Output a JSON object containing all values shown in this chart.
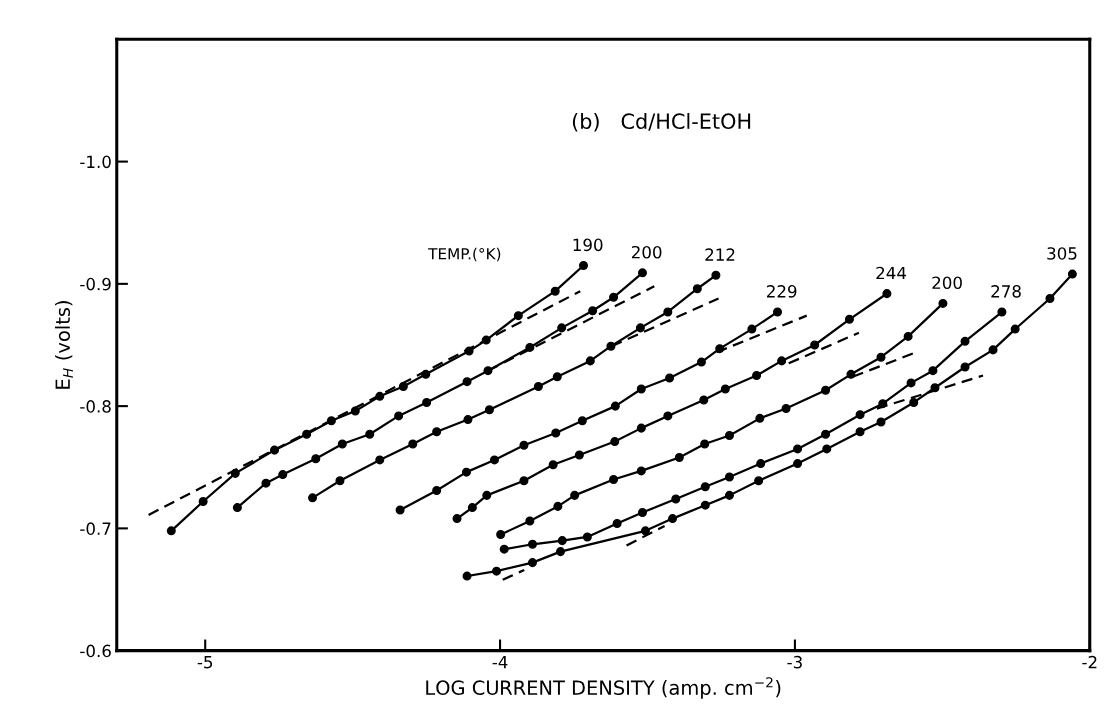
{
  "chart_data": {
    "type": "line",
    "title": "(b)   Cd/HCl-EtOH",
    "xlabel": "LOG CURRENT DENSITY (amp. cm$^{−2}$)",
    "ylabel": "E$_{H}$ (volts)",
    "xlim": [
      -5.3,
      -2
    ],
    "ylim": [
      -0.6,
      -1.1
    ],
    "xticks": [
      -5,
      -4,
      -3,
      -2
    ],
    "yticks": [
      {
        "value": -0.6,
        "label": "-0.6"
      },
      {
        "value": -0.7,
        "label": "-0.7"
      },
      {
        "value": -0.8,
        "label": "-0.8"
      },
      {
        "value": -0.9,
        "label": "-0.9"
      },
      {
        "value": -1.0,
        "label": "-1.0"
      }
    ],
    "grid": false,
    "legend": false,
    "marker": "circle",
    "line_style": "solid",
    "annotations": [
      "TEMP.(°K)"
    ],
    "series": [
      {
        "name": "190",
        "color": "#000000",
        "x": [
          -5.115,
          -5.007,
          -4.898,
          -4.765,
          -4.656,
          -4.572,
          -4.491,
          -4.408,
          -4.328,
          -4.252,
          -4.105,
          -4.047,
          -3.938,
          -3.813,
          -3.717
        ],
        "values": [
          -0.698,
          -0.722,
          -0.745,
          -0.764,
          -0.777,
          -0.788,
          -0.796,
          -0.808,
          -0.816,
          -0.826,
          -0.845,
          -0.854,
          -0.874,
          -0.894,
          -0.915
        ]
      },
      {
        "name": "200",
        "color": "#000000",
        "x": [
          -4.891,
          -4.794,
          -4.737,
          -4.625,
          -4.535,
          -4.442,
          -4.344,
          -4.249,
          -4.112,
          -4.041,
          -3.899,
          -3.791,
          -3.686,
          -3.615,
          -3.517
        ],
        "values": [
          -0.717,
          -0.737,
          -0.744,
          -0.757,
          -0.769,
          -0.777,
          -0.792,
          -0.803,
          -0.82,
          -0.829,
          -0.848,
          -0.864,
          -0.878,
          -0.889,
          -0.909
        ]
      },
      {
        "name": "212",
        "color": "#000000",
        "x": [
          -4.636,
          -4.543,
          -4.408,
          -4.296,
          -4.215,
          -4.109,
          -4.036,
          -3.87,
          -3.806,
          -3.694,
          -3.624,
          -3.524,
          -3.431,
          -3.331,
          -3.268
        ],
        "values": [
          -0.725,
          -0.739,
          -0.756,
          -0.769,
          -0.779,
          -0.789,
          -0.797,
          -0.816,
          -0.824,
          -0.837,
          -0.849,
          -0.864,
          -0.877,
          -0.896,
          -0.907
        ]
      },
      {
        "name": "229",
        "color": "#000000",
        "x": [
          -4.339,
          -4.215,
          -4.114,
          -4.019,
          -3.919,
          -3.811,
          -3.721,
          -3.609,
          -3.521,
          -3.425,
          -3.317,
          -3.255,
          -3.146,
          -3.059
        ],
        "values": [
          -0.715,
          -0.731,
          -0.746,
          -0.756,
          -0.768,
          -0.778,
          -0.788,
          -0.8,
          -0.814,
          -0.823,
          -0.836,
          -0.847,
          -0.863,
          -0.877
        ]
      },
      {
        "name": "244",
        "color": "#000000",
        "x": [
          -4.146,
          -4.094,
          -4.045,
          -3.919,
          -3.82,
          -3.731,
          -3.611,
          -3.521,
          -3.431,
          -3.309,
          -3.236,
          -3.13,
          -3.045,
          -2.933,
          -2.815,
          -2.688
        ],
        "values": [
          -0.708,
          -0.717,
          -0.727,
          -0.739,
          -0.752,
          -0.76,
          -0.771,
          -0.782,
          -0.792,
          -0.805,
          -0.814,
          -0.825,
          -0.837,
          -0.85,
          -0.871,
          -0.892
        ]
      },
      {
        "name": "200",
        "color": "#000000",
        "x": [
          -3.998,
          -3.899,
          -3.804,
          -3.747,
          -3.615,
          -3.521,
          -3.392,
          -3.306,
          -3.222,
          -3.119,
          -3.03,
          -2.896,
          -2.81,
          -2.708,
          -2.616,
          -2.498
        ],
        "values": [
          -0.695,
          -0.706,
          -0.718,
          -0.727,
          -0.74,
          -0.747,
          -0.758,
          -0.769,
          -0.776,
          -0.79,
          -0.798,
          -0.813,
          -0.826,
          -0.84,
          -0.857,
          -0.884
        ]
      },
      {
        "name": "278",
        "color": "#000000",
        "x": [
          -3.986,
          -3.89,
          -3.789,
          -3.704,
          -3.603,
          -3.517,
          -3.404,
          -3.304,
          -3.222,
          -3.116,
          -2.991,
          -2.896,
          -2.779,
          -2.702,
          -2.606,
          -2.532,
          -2.423,
          -2.298
        ],
        "values": [
          -0.683,
          -0.687,
          -0.69,
          -0.693,
          -0.704,
          -0.713,
          -0.724,
          -0.734,
          -0.742,
          -0.753,
          -0.765,
          -0.777,
          -0.793,
          -0.802,
          -0.819,
          -0.829,
          -0.853,
          -0.877
        ]
      },
      {
        "name": "305",
        "color": "#000000",
        "x": [
          -4.112,
          -4.012,
          -3.89,
          -3.795,
          -3.507,
          -3.415,
          -3.304,
          -3.222,
          -3.123,
          -2.991,
          -2.892,
          -2.779,
          -2.708,
          -2.597,
          -2.525,
          -2.423,
          -2.328,
          -2.253,
          -2.135,
          -2.059
        ],
        "values": [
          -0.661,
          -0.665,
          -0.672,
          -0.681,
          -0.698,
          -0.708,
          -0.719,
          -0.727,
          -0.739,
          -0.753,
          -0.765,
          -0.779,
          -0.787,
          -0.803,
          -0.815,
          -0.832,
          -0.846,
          -0.863,
          -0.888,
          -0.908
        ]
      },
      {
        "color": "#000000",
        "marker": "none",
        "line_style": "dashed",
        "x": [
          -5.192,
          -3.728
        ],
        "values": [
          -0.711,
          -0.894
        ]
      },
      {
        "color": "#000000",
        "marker": "none",
        "line_style": "dashed",
        "x": [
          -4.041,
          -3.477
        ],
        "values": [
          -0.829,
          -0.898
        ]
      },
      {
        "color": "#000000",
        "marker": "none",
        "line_style": "dashed",
        "x": [
          -3.622,
          -3.259
        ],
        "values": [
          -0.849,
          -0.888
        ]
      },
      {
        "color": "#000000",
        "marker": "none",
        "line_style": "dashed",
        "x": [
          -3.266,
          -2.96
        ],
        "values": [
          -0.844,
          -0.874
        ]
      },
      {
        "color": "#000000",
        "marker": "none",
        "line_style": "dashed",
        "x": [
          -3.021,
          -2.783
        ],
        "values": [
          -0.835,
          -0.86
        ]
      },
      {
        "color": "#000000",
        "marker": "none",
        "line_style": "dashed",
        "x": [
          -2.804,
          -2.589
        ],
        "values": [
          -0.824,
          -0.844
        ]
      },
      {
        "color": "#000000",
        "marker": "none",
        "line_style": "dashed",
        "x": [
          -2.722,
          -2.362
        ],
        "values": [
          -0.798,
          -0.825
        ]
      },
      {
        "color": "#000000",
        "marker": "none",
        "line_style": "dashed",
        "x": [
          -3.571,
          -3.442
        ],
        "values": [
          -0.686,
          -0.702
        ]
      },
      {
        "color": "#000000",
        "marker": "none",
        "line_style": "dashed",
        "x": [
          -3.991,
          -3.918
        ],
        "values": [
          -0.658,
          -0.666
        ]
      }
    ]
  }
}
